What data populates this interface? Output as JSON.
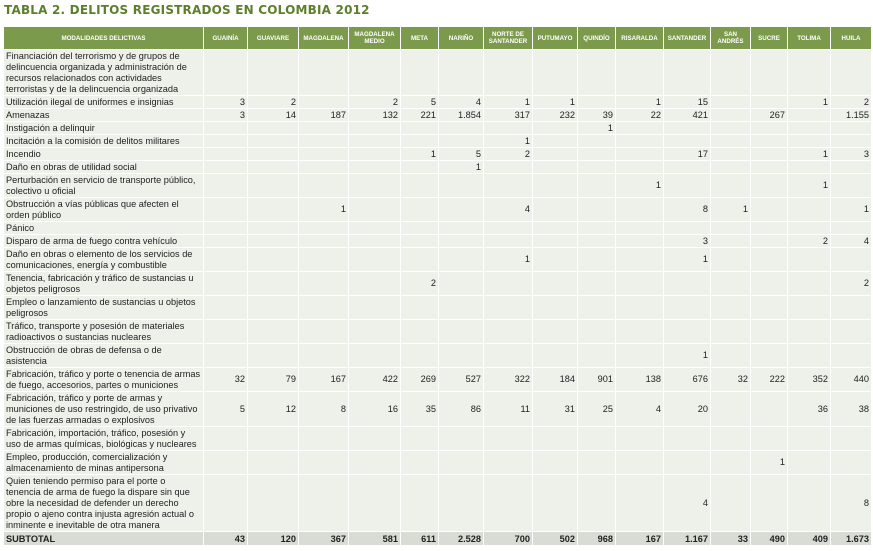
{
  "title": "TABLA 2. DELITOS REGISTRADOS EN COLOMBIA 2012",
  "table": {
    "columns": [
      "MODALIDADES DELICTIVAS",
      "GUAINÍA",
      "GUAVIARE",
      "MAGDALENA",
      "MAGDALENA MEDIO",
      "META",
      "NARIÑO",
      "NORTE DE SANTANDER",
      "PUTUMAYO",
      "QUINDÍO",
      "RISARALDA",
      "SANTANDER",
      "SAN ANDRÉS",
      "SUCRE",
      "TOLIMA",
      "HUILA"
    ],
    "rows": [
      [
        "Financiación del terrorismo y de grupos de delincuencia organizada y administración de recursos relacionados con actividades terroristas y de la delincuencia organizada",
        null,
        null,
        null,
        null,
        null,
        null,
        null,
        null,
        null,
        null,
        null,
        null,
        null,
        null,
        null
      ],
      [
        "Utilización ilegal de uniformes e insignias",
        "3",
        "2",
        null,
        "2",
        "5",
        "4",
        "1",
        "1",
        null,
        "1",
        "15",
        null,
        null,
        "1",
        "2"
      ],
      [
        "Amenazas",
        "3",
        "14",
        "187",
        "132",
        "221",
        "1.854",
        "317",
        "232",
        "39",
        "22",
        "421",
        null,
        "267",
        null,
        "1.155"
      ],
      [
        "Instigación a delinquir",
        null,
        null,
        null,
        null,
        null,
        null,
        null,
        null,
        "1",
        null,
        null,
        null,
        null,
        null,
        null
      ],
      [
        "Incitación a la comisión de delitos militares",
        null,
        null,
        null,
        null,
        null,
        null,
        "1",
        null,
        null,
        null,
        null,
        null,
        null,
        null,
        null
      ],
      [
        "Incendio",
        null,
        null,
        null,
        null,
        "1",
        "5",
        "2",
        null,
        null,
        null,
        "17",
        null,
        null,
        "1",
        "3"
      ],
      [
        "Daño en obras de utilidad social",
        null,
        null,
        null,
        null,
        null,
        "1",
        null,
        null,
        null,
        null,
        null,
        null,
        null,
        null,
        null
      ],
      [
        "Perturbación en servicio de transporte público, colectivo u oficial",
        null,
        null,
        null,
        null,
        null,
        null,
        null,
        null,
        null,
        "1",
        null,
        null,
        null,
        "1",
        null
      ],
      [
        "Obstrucción a vías públicas que afecten el orden público",
        null,
        null,
        "1",
        null,
        null,
        null,
        "4",
        null,
        null,
        null,
        "8",
        "1",
        null,
        null,
        "1"
      ],
      [
        "Pánico",
        null,
        null,
        null,
        null,
        null,
        null,
        null,
        null,
        null,
        null,
        null,
        null,
        null,
        null,
        null
      ],
      [
        "Disparo de arma de fuego contra vehículo",
        null,
        null,
        null,
        null,
        null,
        null,
        null,
        null,
        null,
        null,
        "3",
        null,
        null,
        "2",
        "4"
      ],
      [
        "Daño en obras o elemento de los servicios de comunicaciones, energía y combustible",
        null,
        null,
        null,
        null,
        null,
        null,
        "1",
        null,
        null,
        null,
        "1",
        null,
        null,
        null,
        null
      ],
      [
        "Tenencia, fabricación y tráfico de sustancias u objetos peligrosos",
        null,
        null,
        null,
        null,
        "2",
        null,
        null,
        null,
        null,
        null,
        null,
        null,
        null,
        null,
        "2"
      ],
      [
        "Empleo o lanzamiento de sustancias u objetos peligrosos",
        null,
        null,
        null,
        null,
        null,
        null,
        null,
        null,
        null,
        null,
        null,
        null,
        null,
        null,
        null
      ],
      [
        "Tráfico, transporte y posesión de materiales radioactivos o sustancias nucleares",
        null,
        null,
        null,
        null,
        null,
        null,
        null,
        null,
        null,
        null,
        null,
        null,
        null,
        null,
        null
      ],
      [
        "Obstrucción de obras de defensa o de asistencia",
        null,
        null,
        null,
        null,
        null,
        null,
        null,
        null,
        null,
        null,
        "1",
        null,
        null,
        null,
        null
      ],
      [
        "Fabricación, tráfico y porte o tenencia de armas de fuego, accesorios, partes o municiones",
        "32",
        "79",
        "167",
        "422",
        "269",
        "527",
        "322",
        "184",
        "901",
        "138",
        "676",
        "32",
        "222",
        "352",
        "440"
      ],
      [
        "Fabricación, tráfico y porte de armas y municiones de uso restringido, de uso privativo de las fuerzas armadas o explosivos",
        "5",
        "12",
        "8",
        "16",
        "35",
        "86",
        "11",
        "31",
        "25",
        "4",
        "20",
        null,
        null,
        "36",
        "38"
      ],
      [
        "Fabricación, importación, tráfico, posesión y uso de armas químicas, biológicas y nucleares",
        null,
        null,
        null,
        null,
        null,
        null,
        null,
        null,
        null,
        null,
        null,
        null,
        null,
        null,
        null
      ],
      [
        "Empleo, producción, comercialización y almacenamiento de minas antipersona",
        null,
        null,
        null,
        null,
        null,
        null,
        null,
        null,
        null,
        null,
        null,
        null,
        "1",
        null,
        null
      ],
      [
        "Quien teniendo permiso para el porte o tenencia de arma de fuego la dispare sin que obre la necesidad de defender un derecho propio o ajeno contra injusta agresión actual o inminente e inevitable de otra manera",
        null,
        null,
        null,
        null,
        null,
        null,
        null,
        null,
        null,
        null,
        "4",
        null,
        null,
        null,
        "8"
      ]
    ],
    "subtotal": [
      "SUBTOTAL",
      "43",
      "120",
      "367",
      "581",
      "611",
      "2.528",
      "700",
      "502",
      "968",
      "167",
      "1.167",
      "33",
      "490",
      "409",
      "1.673"
    ]
  }
}
